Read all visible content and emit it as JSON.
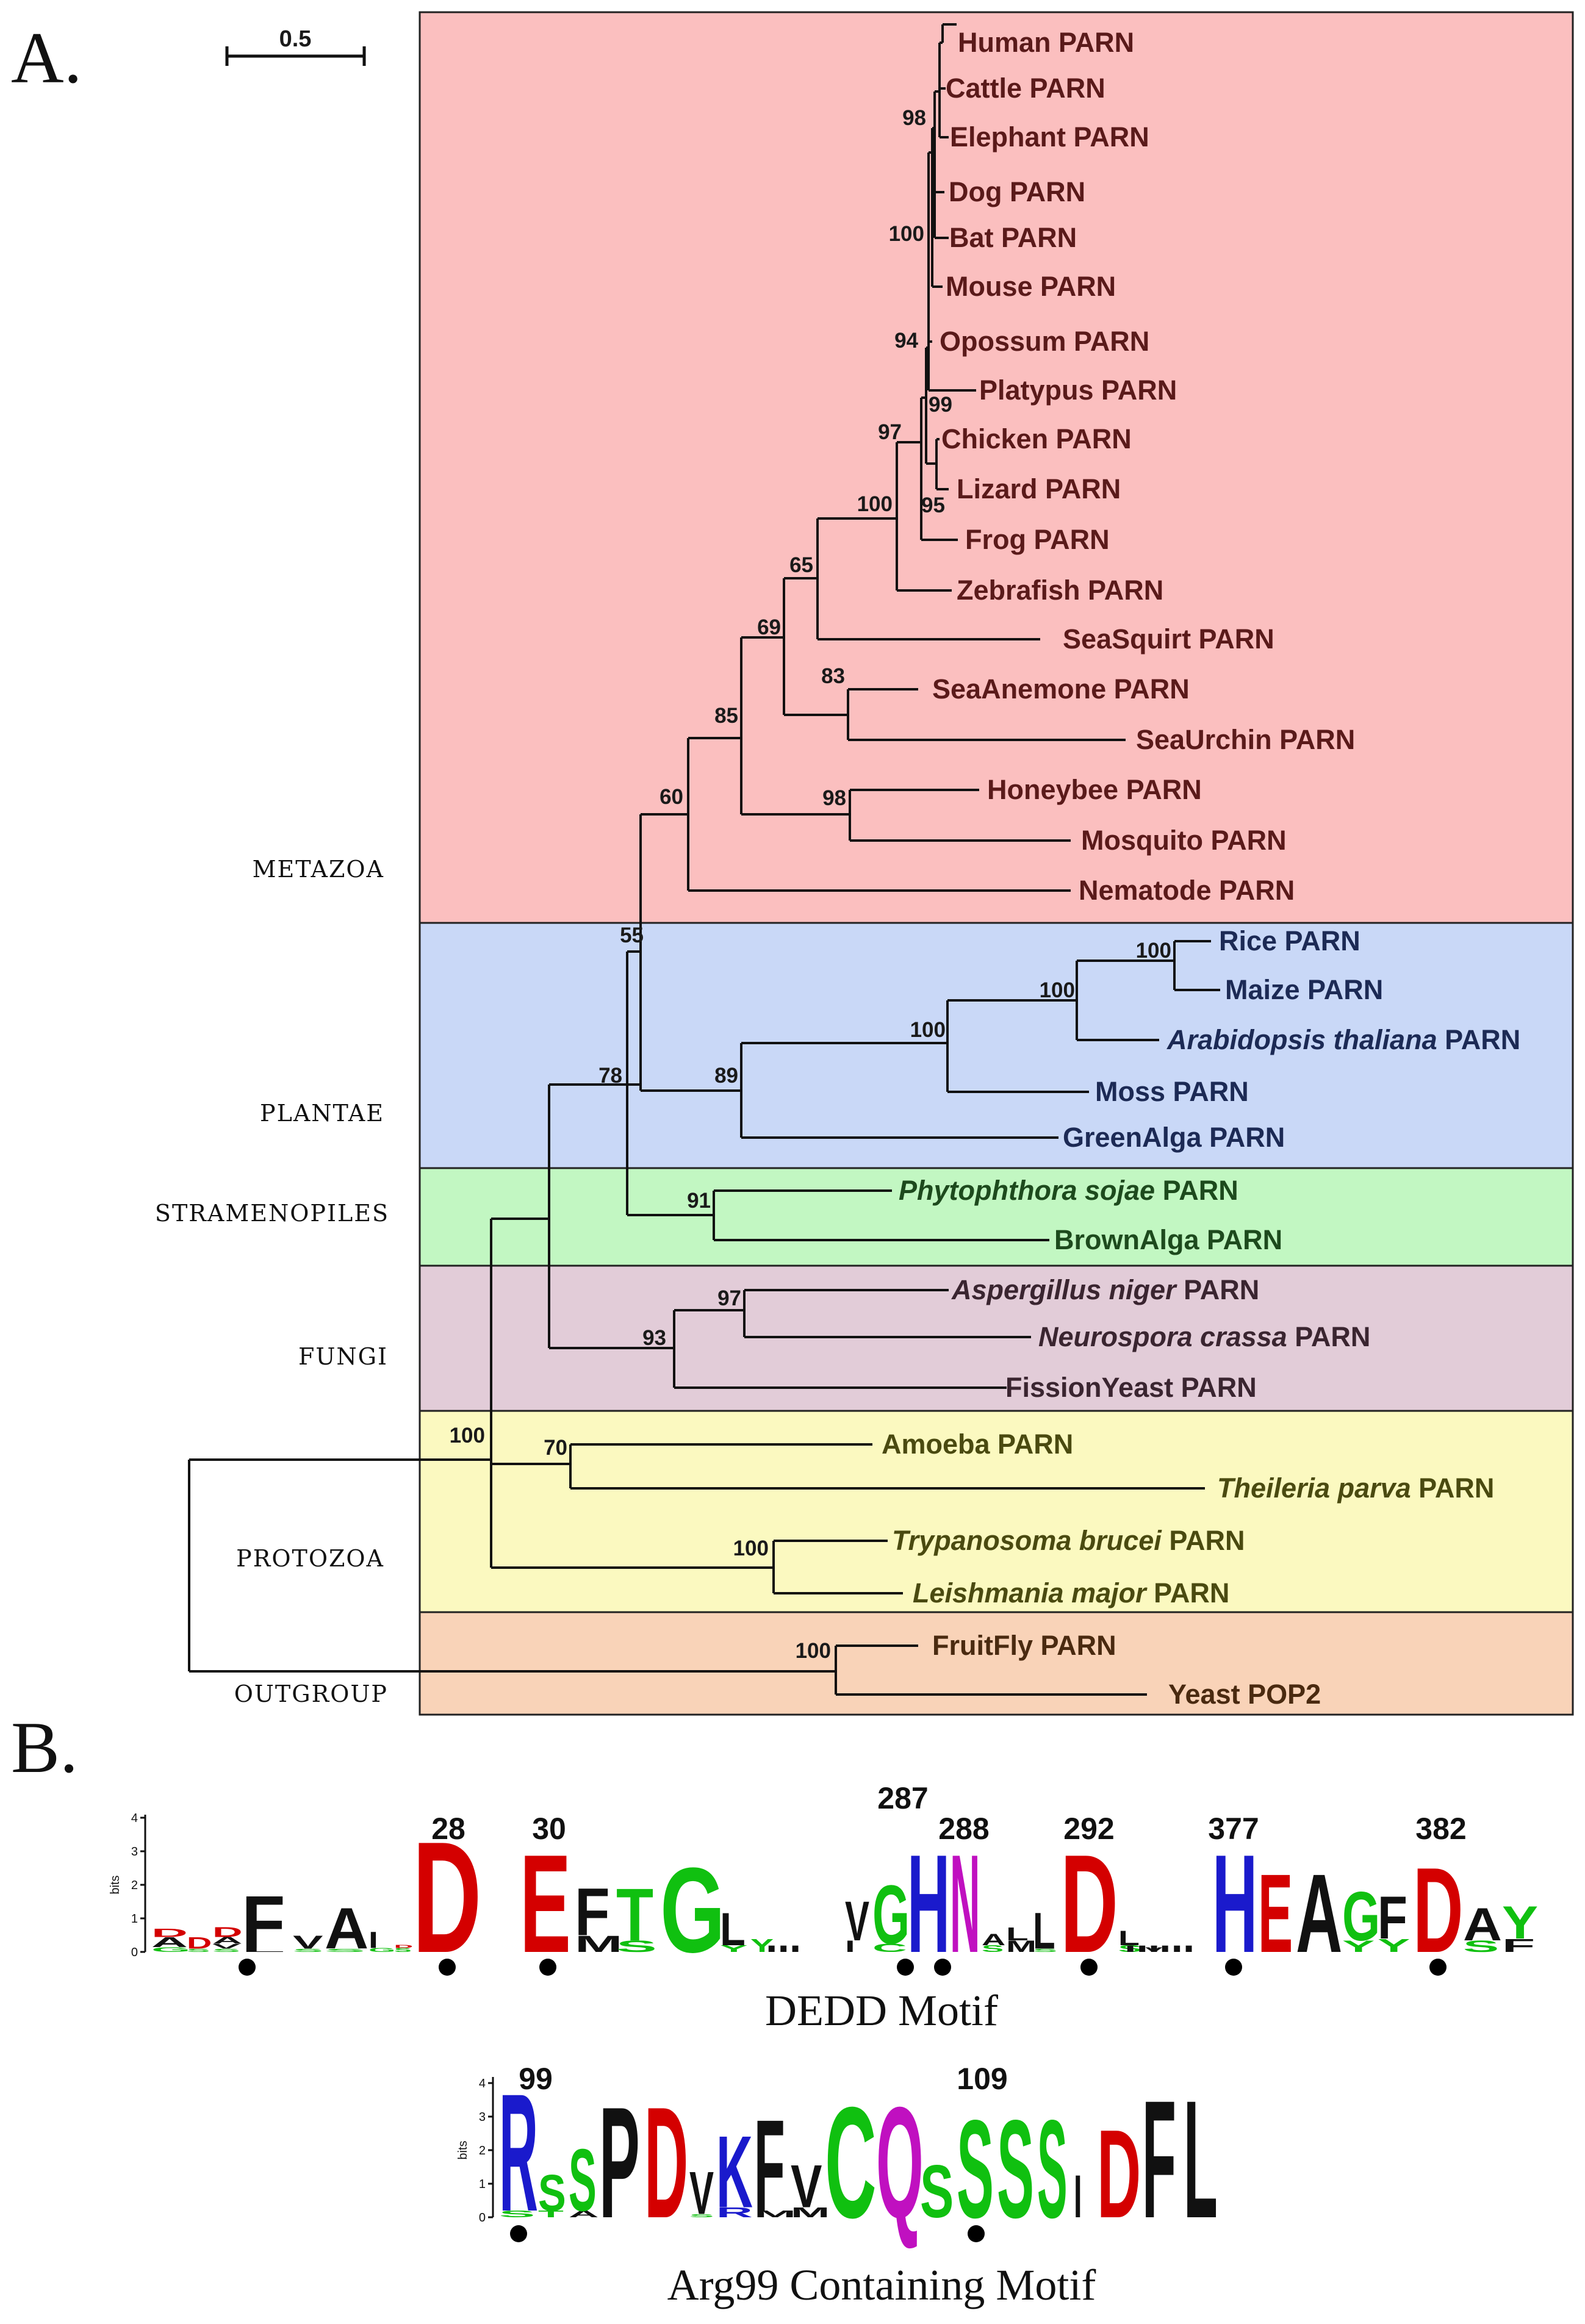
{
  "panels": {
    "a": "A.",
    "b": "B."
  },
  "scale_bar_label": "0.5",
  "groups": [
    {
      "key": "metazoa",
      "label": "METAZOA",
      "color": "#fbbfbf"
    },
    {
      "key": "plantae",
      "label": "PLANTAE",
      "color": "#c9d8f7"
    },
    {
      "key": "stramenopiles",
      "label": "STRAMENOPILES",
      "color": "#c2f7c2"
    },
    {
      "key": "fungi",
      "label": "FUNGI",
      "color": "#e2ccd8"
    },
    {
      "key": "protozoa",
      "label": "PROTOZOA",
      "color": "#fbf9c0"
    },
    {
      "key": "outgroup",
      "label": "OUTGROUP",
      "color": "#f9d3b8",
      "label_color": "#e00000"
    }
  ],
  "text_colors": {
    "metazoa": "#5a1a1a",
    "plantae": "#1c2a55",
    "stramenopiles": "#1d4a1d",
    "fungi": "#3a2530",
    "protozoa": "#4a4a10",
    "outgroup": "#4a2a10"
  },
  "taxa": [
    {
      "id": "human",
      "parts": [
        {
          "t": "Human PARN"
        }
      ]
    },
    {
      "id": "cattle",
      "parts": [
        {
          "t": "Cattle PARN"
        }
      ]
    },
    {
      "id": "elephant",
      "parts": [
        {
          "t": "Elephant PARN"
        }
      ]
    },
    {
      "id": "dog",
      "parts": [
        {
          "t": "Dog PARN"
        }
      ]
    },
    {
      "id": "bat",
      "parts": [
        {
          "t": "Bat PARN"
        }
      ]
    },
    {
      "id": "mouse",
      "parts": [
        {
          "t": "Mouse PARN"
        }
      ]
    },
    {
      "id": "opossum",
      "parts": [
        {
          "t": "Opossum PARN"
        }
      ]
    },
    {
      "id": "platypus",
      "parts": [
        {
          "t": "Platypus PARN"
        }
      ]
    },
    {
      "id": "chicken",
      "parts": [
        {
          "t": "Chicken PARN"
        }
      ]
    },
    {
      "id": "lizard",
      "parts": [
        {
          "t": "Lizard PARN"
        }
      ]
    },
    {
      "id": "frog",
      "parts": [
        {
          "t": "Frog PARN"
        }
      ]
    },
    {
      "id": "zebrafish",
      "parts": [
        {
          "t": "Zebrafish PARN"
        }
      ]
    },
    {
      "id": "seasquirt",
      "parts": [
        {
          "t": "SeaSquirt PARN"
        }
      ]
    },
    {
      "id": "seaanemone",
      "parts": [
        {
          "t": "SeaAnemone PARN"
        }
      ]
    },
    {
      "id": "seaurchin",
      "parts": [
        {
          "t": "SeaUrchin PARN"
        }
      ]
    },
    {
      "id": "honeybee",
      "parts": [
        {
          "t": "Honeybee PARN"
        }
      ]
    },
    {
      "id": "mosquito",
      "parts": [
        {
          "t": "Mosquito PARN"
        }
      ]
    },
    {
      "id": "nematode",
      "parts": [
        {
          "t": "Nematode PARN"
        }
      ]
    },
    {
      "id": "rice",
      "parts": [
        {
          "t": "Rice PARN"
        }
      ]
    },
    {
      "id": "maize",
      "parts": [
        {
          "t": "Maize PARN"
        }
      ]
    },
    {
      "id": "arabidopsis",
      "parts": [
        {
          "t": "Arabidopsis thaliana",
          "i": true
        },
        {
          "t": " PARN"
        }
      ]
    },
    {
      "id": "moss",
      "parts": [
        {
          "t": "Moss PARN"
        }
      ]
    },
    {
      "id": "greenalga",
      "parts": [
        {
          "t": "GreenAlga PARN"
        }
      ]
    },
    {
      "id": "phytophthora",
      "parts": [
        {
          "t": "Phytophthora sojae",
          "i": true
        },
        {
          "t": " PARN"
        }
      ]
    },
    {
      "id": "brownalga",
      "parts": [
        {
          "t": "BrownAlga PARN"
        }
      ]
    },
    {
      "id": "aspergillus",
      "parts": [
        {
          "t": "Aspergillus niger",
          "i": true
        },
        {
          "t": "  PARN"
        }
      ]
    },
    {
      "id": "neurospora",
      "parts": [
        {
          "t": "Neurospora crassa",
          "i": true
        },
        {
          "t": " PARN"
        }
      ]
    },
    {
      "id": "fissionyeast",
      "parts": [
        {
          "t": "FissionYeast PARN"
        }
      ]
    },
    {
      "id": "amoeba",
      "parts": [
        {
          "t": "Amoeba PARN"
        }
      ]
    },
    {
      "id": "theileria",
      "parts": [
        {
          "t": "Theileria parva",
          "i": true
        },
        {
          "t": " PARN"
        }
      ]
    },
    {
      "id": "trypanosoma",
      "parts": [
        {
          "t": "Trypanosoma brucei",
          "i": true
        },
        {
          "t": " PARN"
        }
      ]
    },
    {
      "id": "leishmania",
      "parts": [
        {
          "t": "Leishmania major",
          "i": true
        },
        {
          "t": "  PARN"
        }
      ]
    },
    {
      "id": "fruitfly",
      "parts": [
        {
          "t": "FruitFly PARN"
        }
      ]
    },
    {
      "id": "yeastpop2",
      "parts": [
        {
          "t": "Yeast POP2"
        }
      ]
    }
  ],
  "bootstrap_values": [
    "98",
    "100",
    "94",
    "99",
    "97",
    "95",
    "100",
    "65",
    "69",
    "83",
    "85",
    "98",
    "60",
    "55",
    "100",
    "100",
    "100",
    "89",
    "78",
    "91",
    "97",
    "93",
    "100",
    "70",
    "100",
    "100"
  ],
  "motif_dedd": {
    "title": "DEDD Motif",
    "axis_label": "bits",
    "ticks": [
      "0",
      "1",
      "2",
      "3",
      "4"
    ],
    "positions": [
      "28",
      "30",
      "287",
      "288",
      "292",
      "377",
      "382"
    ],
    "ellipses": [
      "...",
      "...",
      "..."
    ]
  },
  "motif_arg99": {
    "title": "Arg99 Containing Motif",
    "axis_label": "bits",
    "ticks": [
      "0",
      "1",
      "2",
      "3",
      "4"
    ],
    "positions": [
      "99",
      "109"
    ],
    "letters": [
      "R",
      "S",
      "S",
      "P",
      "D",
      "V",
      "K",
      "F",
      "V",
      "C",
      "Q",
      "S",
      "S",
      "S",
      "I",
      "D",
      "F",
      "L"
    ]
  },
  "residue_colors": {
    "acidic": "#d40000",
    "basic": "#1a1acc",
    "polar": "#10c010",
    "amide": "#c010c0",
    "hydrophobic": "#111111"
  }
}
